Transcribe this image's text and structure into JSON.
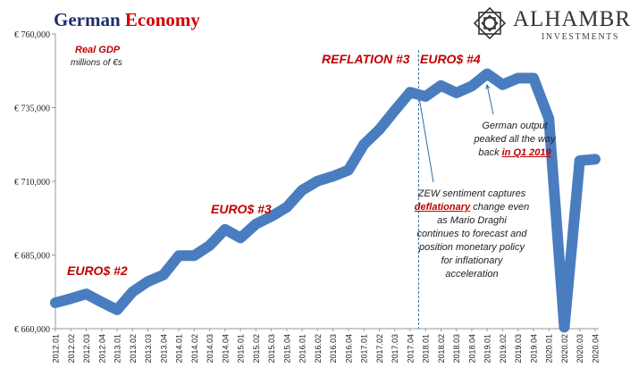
{
  "header": {
    "title_part1": "German",
    "title_part2": "Economy",
    "logo_name": "ALHAMBRA",
    "logo_sub": "INVESTMENTS"
  },
  "colors": {
    "line": "#4a7dc0",
    "accent_red": "#c00000",
    "title_blue": "#1f2f6b"
  },
  "annotations": {
    "series_label": "Real GDP",
    "units": "millions of €s",
    "euro2": "EURO$ #2",
    "euro3": "EURO$ #3",
    "reflation3": "REFLATION #3",
    "euro4": "EURO$ #4",
    "peak_note": {
      "line1": "German output",
      "line2": "peaked all the way",
      "line3_pre": "back ",
      "line3_hl": "in Q1 2019"
    },
    "zew_note": {
      "line1": "ZEW sentiment captures",
      "line2_hl": "deflationary",
      "line2_post": " change even",
      "line3": "as Mario Draghi",
      "line4": "continues to forecast and",
      "line5": "position monetary policy",
      "line6": "for inflationary",
      "line7": "acceleration"
    }
  },
  "chart_data": {
    "type": "line",
    "title": "German Economy",
    "ylabel": "",
    "xlabel": "",
    "ylim": [
      660000,
      760000
    ],
    "yticks": [
      660000,
      685000,
      710000,
      735000,
      760000
    ],
    "ytick_labels": [
      "€ 660,000",
      "€ 685,000",
      "€ 710,000",
      "€ 735,000",
      "€ 760,000"
    ],
    "grid": false,
    "vline_at": "2017.04",
    "categories": [
      "2012.01",
      "2012.02",
      "2012.03",
      "2012.04",
      "2013.01",
      "2013.02",
      "2013.03",
      "2013.04",
      "2014.01",
      "2014.02",
      "2014.03",
      "2014.04",
      "2015.01",
      "2015.02",
      "2015.03",
      "2015.04",
      "2016.01",
      "2016.02",
      "2016.03",
      "2016.04",
      "2017.01",
      "2017.02",
      "2017.03",
      "2017.04",
      "2018.01",
      "2018.02",
      "2018.03",
      "2018.04",
      "2019.01",
      "2019.02",
      "2019.03",
      "2019.04",
      "2020.01",
      "2020.02",
      "2020.03",
      "2020.04"
    ],
    "series": [
      {
        "values": [
          668800,
          670200,
          671800,
          669000,
          666400,
          672500,
          676000,
          678200,
          684800,
          684800,
          688200,
          693700,
          690800,
          695500,
          698100,
          701200,
          707000,
          710100,
          711700,
          713800,
          722500,
          727500,
          734000,
          740200,
          738800,
          742500,
          740000,
          742300,
          746500,
          742800,
          745000,
          745000,
          731300,
          660500,
          717000,
          717500
        ]
      }
    ]
  }
}
